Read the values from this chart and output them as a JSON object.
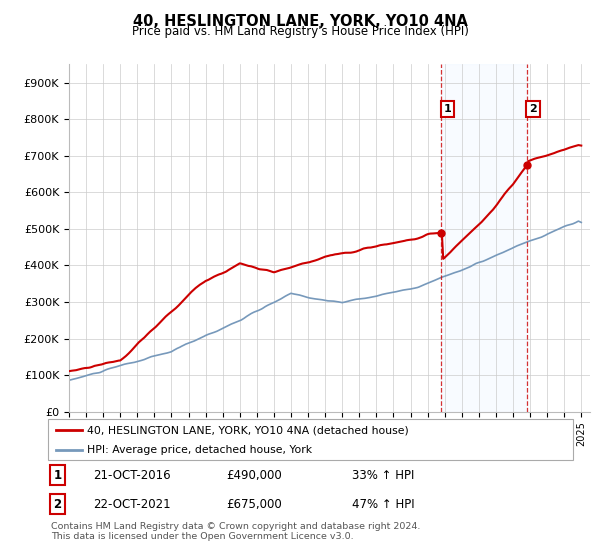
{
  "title": "40, HESLINGTON LANE, YORK, YO10 4NA",
  "subtitle": "Price paid vs. HM Land Registry's House Price Index (HPI)",
  "ylim": [
    0,
    950000
  ],
  "yticks": [
    0,
    100000,
    200000,
    300000,
    400000,
    500000,
    600000,
    700000,
    800000,
    900000
  ],
  "ytick_labels": [
    "£0",
    "£100K",
    "£200K",
    "£300K",
    "£400K",
    "£500K",
    "£600K",
    "£700K",
    "£800K",
    "£900K"
  ],
  "background_color": "#ffffff",
  "plot_bg_color": "#ffffff",
  "grid_color": "#cccccc",
  "red_line_color": "#cc0000",
  "blue_line_color": "#7799bb",
  "marker1_year": 2016.8,
  "marker2_year": 2021.8,
  "marker1_value": 490000,
  "marker2_value": 675000,
  "dashed_line_color": "#cc0000",
  "shade_color": "#ddeeff",
  "legend_entries": [
    "40, HESLINGTON LANE, YORK, YO10 4NA (detached house)",
    "HPI: Average price, detached house, York"
  ],
  "annotation_rows": [
    {
      "num": "1",
      "date": "21-OCT-2016",
      "price": "£490,000",
      "change": "33% ↑ HPI"
    },
    {
      "num": "2",
      "date": "22-OCT-2021",
      "price": "£675,000",
      "change": "47% ↑ HPI"
    }
  ],
  "footer": "Contains HM Land Registry data © Crown copyright and database right 2024.\nThis data is licensed under the Open Government Licence v3.0."
}
